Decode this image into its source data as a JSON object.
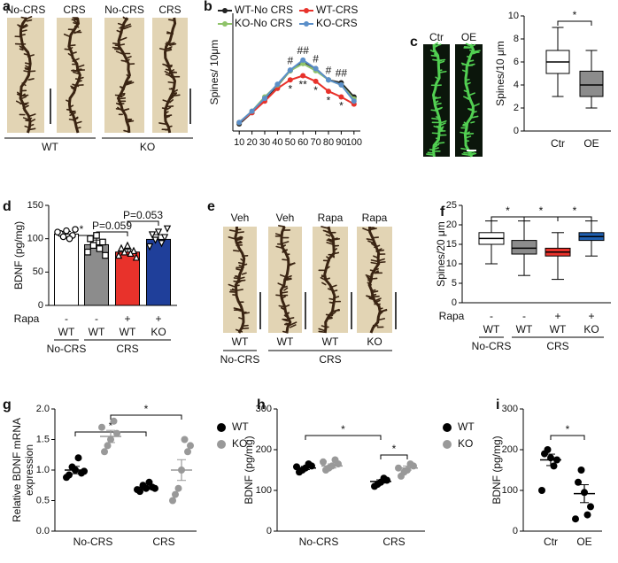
{
  "chart_data": [
    {
      "panel": "b",
      "type": "line",
      "ylabel": "Spines/ 10μm",
      "x": [
        10,
        20,
        30,
        40,
        50,
        60,
        70,
        80,
        90,
        100
      ],
      "xlim": [
        5,
        105
      ],
      "xticks": [
        10,
        20,
        30,
        40,
        50,
        60,
        70,
        80,
        90,
        100
      ],
      "ylim": [
        1.5,
        9.8
      ],
      "series": [
        {
          "name": "WT-No CRS",
          "color": "#222222",
          "values": [
            2.0,
            2.8,
            3.75,
            4.7,
            5.75,
            6.4,
            5.9,
            5.1,
            4.9,
            3.9
          ]
        },
        {
          "name": "WT-CRS",
          "color": "#e8322b",
          "values": [
            2.1,
            2.8,
            3.6,
            4.5,
            5.1,
            5.4,
            5.0,
            4.3,
            3.9,
            3.4
          ]
        },
        {
          "name": "KO-No CRS",
          "color": "#8fc36a",
          "values": [
            2.1,
            2.9,
            3.9,
            4.75,
            5.75,
            6.25,
            5.75,
            5.1,
            4.75,
            3.75
          ]
        },
        {
          "name": "KO-CRS",
          "color": "#5b8fc9",
          "values": [
            2.1,
            2.9,
            3.8,
            4.8,
            5.8,
            6.5,
            5.9,
            5.1,
            4.75,
            3.6
          ]
        }
      ],
      "sig_ko": [
        null,
        null,
        null,
        null,
        "#",
        "##",
        "#",
        "#",
        "##",
        null
      ],
      "sig_wt_crs": [
        null,
        null,
        null,
        null,
        "*",
        "**",
        "*",
        "*",
        "*",
        null
      ]
    },
    {
      "type": "box",
      "ylabel": "Spines/10 μm",
      "categories": [
        "Ctr",
        "OE"
      ],
      "ylim": [
        0,
        10
      ],
      "yticks": [
        0,
        2,
        4,
        6,
        8,
        10
      ],
      "colors": [
        "#ffffff",
        "#8c8c8c"
      ],
      "boxes": [
        {
          "min": 3,
          "q1": 5,
          "median": 6,
          "q3": 7,
          "max": 9
        },
        {
          "min": 2,
          "q1": 3,
          "median": 4,
          "q3": 5.2,
          "max": 7
        }
      ],
      "brackets": [
        "*"
      ]
    },
    {
      "panel": "d",
      "type": "bar",
      "ylabel": "BDNF (pg/mg)",
      "ylim": [
        0,
        150
      ],
      "yticks": [
        0,
        50,
        100,
        150
      ],
      "values": [
        107,
        91,
        80,
        99
      ],
      "errors": [
        4,
        7,
        4,
        7
      ],
      "colors": [
        "#ffffff",
        "#8c8c8c",
        "#e8322b",
        "#1f3f9a"
      ],
      "markers": [
        "circle",
        "square",
        "triangle",
        "triangle-down"
      ],
      "points": [
        [
          112,
          108,
          105,
          103,
          100,
          110,
          114
        ],
        [
          105,
          100,
          95,
          90,
          85,
          80,
          75
        ],
        [
          90,
          86,
          82,
          80,
          78,
          75,
          72
        ],
        [
          110,
          106,
          102,
          98,
          93,
          88,
          115
        ]
      ],
      "row_label": "Rapa",
      "rapa": [
        "-",
        "-",
        "+",
        "+"
      ],
      "genotypes": [
        "WT",
        "WT",
        "WT",
        "KO"
      ],
      "groups": [
        "No-CRS",
        "CRS"
      ],
      "brackets": [
        "*",
        "P=0.059",
        "P=0.053"
      ]
    },
    {
      "panel": "f",
      "type": "box",
      "ylabel": "Spines/20 μm",
      "ylim": [
        0,
        25
      ],
      "yticks": [
        0,
        5,
        10,
        15,
        20,
        25
      ],
      "colors": [
        "#ffffff",
        "#8c8c8c",
        "#e8322b",
        "#1f5fb0"
      ],
      "boxes": [
        {
          "min": 10,
          "q1": 15,
          "median": 16.5,
          "q3": 18,
          "max": 21
        },
        {
          "min": 7,
          "q1": 12.5,
          "median": 14,
          "q3": 16,
          "max": 21
        },
        {
          "min": 6,
          "q1": 12,
          "median": 13,
          "q3": 14,
          "max": 18
        },
        {
          "min": 12,
          "q1": 16,
          "median": 17,
          "q3": 18,
          "max": 21
        }
      ],
      "row_label": "Rapa",
      "rapa": [
        "-",
        "-",
        "+",
        "+"
      ],
      "genotypes": [
        "WT",
        "WT",
        "WT",
        "KO"
      ],
      "groups": [
        "No-CRS",
        "CRS"
      ],
      "brackets": [
        "*",
        "*",
        "*"
      ]
    },
    {
      "panel": "g",
      "type": "dot",
      "ylabel": [
        "Relative BDNF mRNA",
        "expression"
      ],
      "categories": [
        "No-CRS",
        "CRS"
      ],
      "ylim": [
        0,
        2
      ],
      "yticks": [
        {
          "value": 0,
          "label": "0.0"
        },
        0.5,
        {
          "value": 1,
          "label": "1.0"
        },
        1.5,
        {
          "value": 2,
          "label": "2.0"
        }
      ],
      "series": [
        {
          "name": "WT",
          "color": "#000000",
          "points": [
            [
              1.0,
              0.92,
              0.95,
              1.05,
              1.2,
              0.88,
              0.98
            ],
            [
              0.7,
              0.65,
              0.72,
              0.75,
              0.8,
              0.68,
              0.7
            ]
          ],
          "means": [
            1.0,
            0.72
          ],
          "sems": [
            0.06,
            0.03
          ]
        },
        {
          "name": "KO",
          "color": "#999999",
          "points": [
            [
              1.5,
              1.3,
              1.6,
              1.4,
              1.8,
              1.7
            ],
            [
              1.0,
              0.6,
              1.3,
              0.7,
              1.5,
              0.5,
              1.4
            ]
          ],
          "means": [
            1.55,
            1.0
          ],
          "sems": [
            0.1,
            0.17
          ]
        }
      ],
      "brackets": [
        "*",
        "*"
      ]
    },
    {
      "panel": "h",
      "type": "dot",
      "ylabel": "BDNF (pg/mg)",
      "categories": [
        "No-CRS",
        "CRS"
      ],
      "ylim": [
        0,
        300
      ],
      "yticks": [
        0,
        100,
        200,
        300
      ],
      "series": [
        {
          "name": "WT",
          "color": "#000000",
          "points": [
            [
              155,
              145,
              160,
              150,
              165,
              158
            ],
            [
              120,
              110,
              125,
              115,
              130
            ]
          ],
          "means": [
            155,
            122
          ],
          "sems": [
            4,
            4
          ]
        },
        {
          "name": "KO",
          "color": "#999999",
          "points": [
            [
              160,
              150,
              165,
              155,
              175,
              170
            ],
            [
              150,
              135,
              160,
              145,
              165,
              155
            ]
          ],
          "means": [
            160,
            155
          ],
          "sems": [
            5,
            5
          ]
        }
      ],
      "brackets": [
        "*",
        "*"
      ]
    },
    {
      "panel": "i",
      "type": "dot",
      "ylabel": "BDNF (pg/mg)",
      "categories": [
        "Ctr",
        "OE"
      ],
      "ylim": [
        0,
        300
      ],
      "yticks": [
        0,
        100,
        200,
        300
      ],
      "color": "#000000",
      "points": [
        [
          180,
          190,
          175,
          200,
          160,
          100
        ],
        [
          95,
          120,
          60,
          150,
          40,
          30
        ]
      ],
      "means": [
        175,
        92
      ],
      "sems": [
        14,
        22
      ],
      "brackets": [
        "*"
      ]
    }
  ],
  "images": [
    {
      "panel": "a",
      "labels": [
        "No-CRS",
        "CRS",
        "No-CRS",
        "CRS"
      ],
      "groups": [
        "WT",
        "KO"
      ]
    },
    {
      "panel": "c",
      "labels": [
        "Ctr",
        "OE"
      ]
    },
    {
      "panel": "e",
      "labels": [
        "Veh",
        "Veh",
        "Rapa",
        "Rapa"
      ],
      "genotypes": [
        "WT",
        "WT",
        "WT",
        "KO"
      ],
      "groups": [
        "No-CRS",
        "CRS"
      ]
    }
  ]
}
